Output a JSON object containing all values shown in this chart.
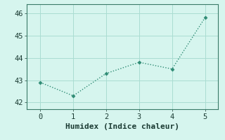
{
  "x": [
    0,
    1,
    2,
    3,
    4,
    5
  ],
  "y": [
    42.9,
    42.3,
    43.3,
    43.8,
    43.5,
    45.8
  ],
  "line_color": "#2e8b74",
  "marker": "D",
  "marker_size": 2.5,
  "line_width": 1.0,
  "xlabel": "Humidex (Indice chaleur)",
  "xlabel_fontsize": 8,
  "bg_color": "#d6f5ee",
  "grid_color": "#aaddd2",
  "ylim": [
    41.7,
    46.4
  ],
  "xlim": [
    -0.4,
    5.4
  ],
  "yticks": [
    42,
    43,
    44,
    45,
    46
  ],
  "xticks": [
    0,
    1,
    2,
    3,
    4,
    5
  ],
  "tick_fontsize": 7.5,
  "tick_color": "#1a3a32",
  "spine_color": "#3a7a68"
}
